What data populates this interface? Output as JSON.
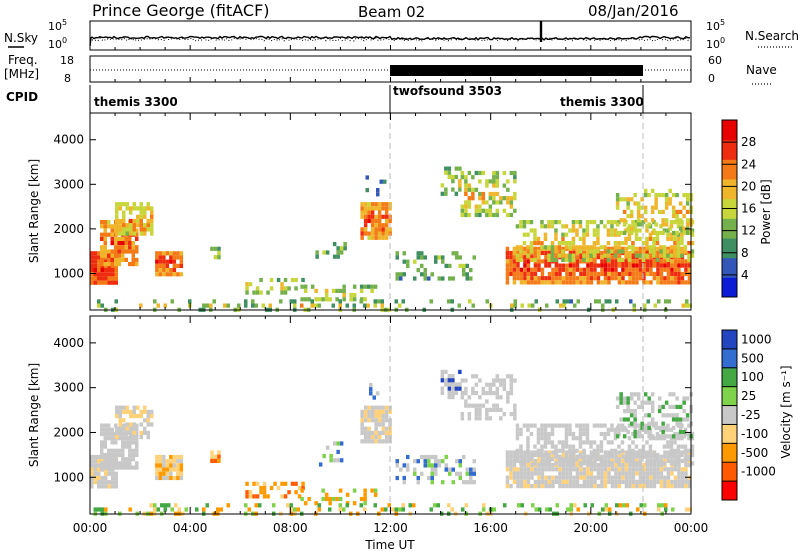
{
  "header": {
    "station": "Prince George (fitACF)",
    "beam": "Beam 02",
    "date": "08/Jan/2016"
  },
  "colors": {
    "power_scale": [
      "#0b1bd6",
      "#3257b8",
      "#3f8f62",
      "#74b04c",
      "#c7d63a",
      "#f0b62b",
      "#f47a17",
      "#ee2d10",
      "#e80000"
    ],
    "velocity_scale": [
      "#ff0000",
      "#ff5a00",
      "#ff9900",
      "#ffd27a",
      "#c8c8c8",
      "#7fd34a",
      "#44a844",
      "#336dcf",
      "#2345c0"
    ]
  },
  "chart_data": [
    {
      "type": "line",
      "name": "N.Sky / N.Search strip",
      "left_label": "N.Sky",
      "left_ticks": [
        "10^5",
        "10^0"
      ],
      "right_label": "N.Search",
      "right_ticks": [
        "10^5",
        "10^0"
      ],
      "x": [
        "00:00",
        "04:00",
        "08:00",
        "12:00",
        "16:00",
        "20:00",
        "00:00"
      ]
    },
    {
      "type": "line",
      "name": "Freq / Nave strip",
      "left_label": "Freq.",
      "left_unit": "[MHz]",
      "left_ticks": [
        "18",
        "8"
      ],
      "right_label": "Nave",
      "right_ticks": [
        "60",
        "0"
      ],
      "x": [
        "00:00",
        "04:00",
        "08:00",
        "12:00",
        "16:00",
        "20:00",
        "00:00"
      ]
    },
    {
      "type": "table",
      "name": "CPID",
      "label": "CPID",
      "segments": [
        {
          "name": "themis 3300",
          "start_hr": 0,
          "end_hr": 12
        },
        {
          "name": "twofsound 3503",
          "start_hr": 12,
          "end_hr": 22
        },
        {
          "name": "themis 3300",
          "start_hr": 22,
          "end_hr": 24
        }
      ]
    },
    {
      "type": "heatmap",
      "name": "power",
      "ylabel": "Slant Range [km]",
      "xlabel": "",
      "xlim": [
        0,
        24
      ],
      "ylim": [
        180,
        4600
      ],
      "yticks": [
        "1000",
        "2000",
        "3000",
        "4000"
      ],
      "colorbar_label": "Power [dB]",
      "colorbar_ticks": [
        "4",
        "8",
        "12",
        "16",
        "20",
        "24",
        "28"
      ],
      "xticks": [
        "00:00",
        "04:00",
        "08:00",
        "12:00",
        "16:00",
        "20:00",
        "00:00"
      ]
    },
    {
      "type": "heatmap",
      "name": "velocity",
      "ylabel": "Slant Range [km]",
      "xlabel": "Time UT",
      "xlim": [
        0,
        24
      ],
      "ylim": [
        180,
        4600
      ],
      "yticks": [
        "1000",
        "2000",
        "3000",
        "4000"
      ],
      "colorbar_label": "Velocity [m s⁻¹]",
      "colorbar_ticks": [
        "1000",
        "500",
        "100",
        "25",
        "-25",
        "-100",
        "-500",
        "-1000"
      ],
      "xticks": [
        "00:00",
        "04:00",
        "08:00",
        "12:00",
        "16:00",
        "20:00",
        "00:00"
      ]
    }
  ]
}
